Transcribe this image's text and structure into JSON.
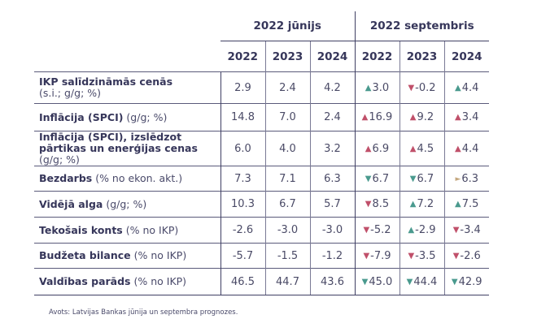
{
  "header": {
    "groups": [
      "2022 jūnijs",
      "2022 septembris"
    ],
    "years": [
      "2022",
      "2023",
      "2024",
      "2022",
      "2023",
      "2024"
    ]
  },
  "rows": [
    {
      "label": "IKP salīdzināmās cenās",
      "unit": "(s.i.; g/g; %)",
      "unit_newline": true,
      "june": [
        "2.9",
        "2.4",
        "4.2"
      ],
      "sept": [
        {
          "v": "3.0",
          "arrow": "up",
          "color": "green"
        },
        {
          "v": "-0.2",
          "arrow": "down",
          "color": "red"
        },
        {
          "v": "4.4",
          "arrow": "up",
          "color": "green"
        }
      ]
    },
    {
      "label": "Inflācija (SPCI)",
      "unit": "(g/g; %)",
      "june": [
        "14.8",
        "7.0",
        "2.4"
      ],
      "sept": [
        {
          "v": "16.9",
          "arrow": "up",
          "color": "red"
        },
        {
          "v": "9.2",
          "arrow": "up",
          "color": "red"
        },
        {
          "v": "3.4",
          "arrow": "up",
          "color": "red"
        }
      ]
    },
    {
      "label": "Inflācija (SPCI), izslēdzot pārtikas un enerģijas cenas",
      "unit": "(g/g; %)",
      "june": [
        "6.0",
        "4.0",
        "3.2"
      ],
      "sept": [
        {
          "v": "6.9",
          "arrow": "up",
          "color": "red"
        },
        {
          "v": "4.5",
          "arrow": "up",
          "color": "red"
        },
        {
          "v": "4.4",
          "arrow": "up",
          "color": "red"
        }
      ]
    },
    {
      "label": "Bezdarbs",
      "unit": "(% no ekon. akt.)",
      "june": [
        "7.3",
        "7.1",
        "6.3"
      ],
      "sept": [
        {
          "v": "6.7",
          "arrow": "down",
          "color": "green"
        },
        {
          "v": "6.7",
          "arrow": "down",
          "color": "green"
        },
        {
          "v": "6.3",
          "arrow": "right",
          "color": "tan"
        }
      ]
    },
    {
      "label": "Vidējā alga",
      "unit": "(g/g; %)",
      "june": [
        "10.3",
        "6.7",
        "5.7"
      ],
      "sept": [
        {
          "v": "8.5",
          "arrow": "down",
          "color": "red"
        },
        {
          "v": "7.2",
          "arrow": "up",
          "color": "green"
        },
        {
          "v": "7.5",
          "arrow": "up",
          "color": "green"
        }
      ]
    },
    {
      "label": "Tekošais konts",
      "unit": "(% no IKP)",
      "june": [
        "-2.6",
        "-3.0",
        "-3.0"
      ],
      "sept": [
        {
          "v": "-5.2",
          "arrow": "down",
          "color": "red"
        },
        {
          "v": "-2.9",
          "arrow": "up",
          "color": "green"
        },
        {
          "v": "-3.4",
          "arrow": "down",
          "color": "red"
        }
      ]
    },
    {
      "label": "Budžeta bilance",
      "unit": "(% no IKP)",
      "june": [
        "-5.7",
        "-1.5",
        "-1.2"
      ],
      "sept": [
        {
          "v": "-7.9",
          "arrow": "down",
          "color": "red"
        },
        {
          "v": "-3.5",
          "arrow": "down",
          "color": "red"
        },
        {
          "v": "-2.6",
          "arrow": "down",
          "color": "red"
        }
      ]
    },
    {
      "label": "Valdības parāds",
      "unit": "(% no IKP)",
      "june": [
        "46.5",
        "44.7",
        "43.6"
      ],
      "sept": [
        {
          "v": "45.0",
          "arrow": "down",
          "color": "green"
        },
        {
          "v": "44.4",
          "arrow": "down",
          "color": "green"
        },
        {
          "v": "42.9",
          "arrow": "down",
          "color": "green"
        }
      ]
    }
  ],
  "arrow_glyphs": {
    "up": "▲",
    "down": "▼",
    "right": "►"
  },
  "colors": {
    "green": "#4a9a8e",
    "red": "#c0506a",
    "tan": "#c4a77e",
    "text": "#3a3a5c",
    "rule": "#3f3f63"
  },
  "footer": {
    "source": "Avots: Latvijas Bankas jūnija un septembra prognozes."
  }
}
